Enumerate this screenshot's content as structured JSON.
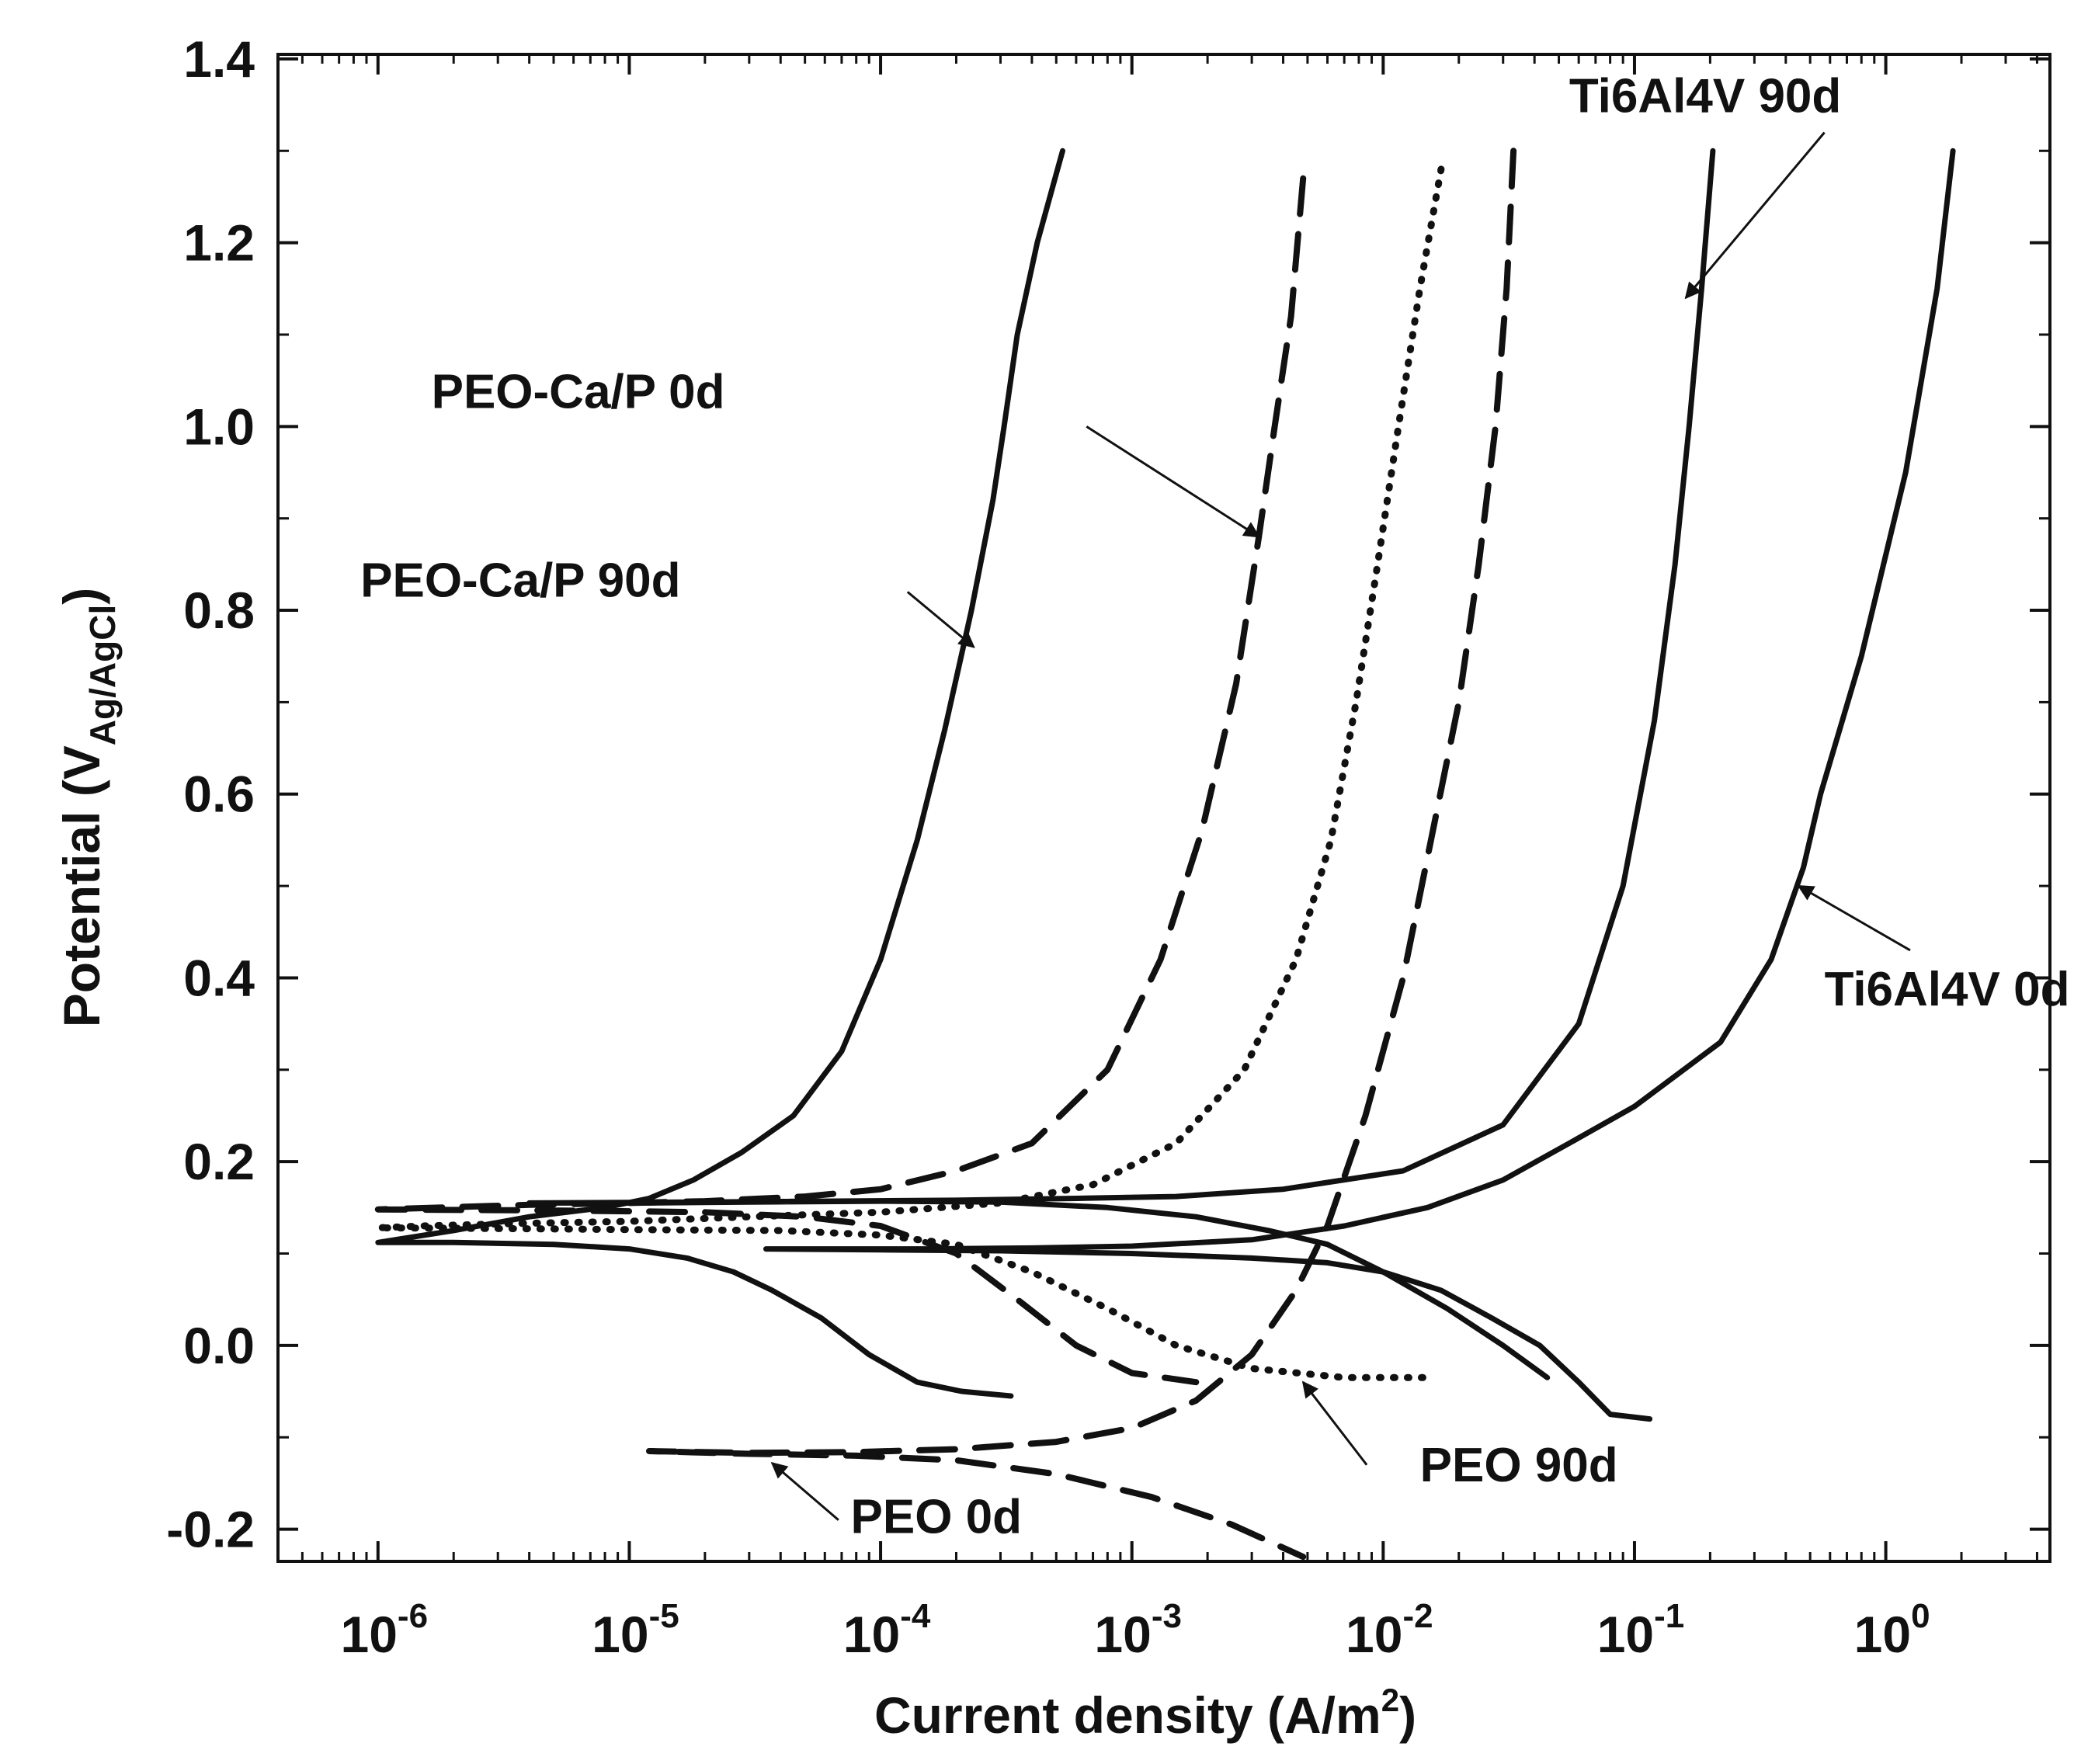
{
  "chart_data": {
    "type": "line",
    "title": "",
    "xlabel": "Current density (A/m",
    "xlabel_sup": "2",
    "xlabel_tail": ")",
    "ylabel": "Potential (V",
    "ylabel_sub": "Ag/AgCl",
    "ylabel_tail": ")",
    "x_scale": "log",
    "xlim": [
      4e-07,
      4.5
    ],
    "ylim": [
      -0.235,
      1.405
    ],
    "x_ticks": [
      {
        "value": 1e-06,
        "base": "10",
        "exp": "-6"
      },
      {
        "value": 1e-05,
        "base": "10",
        "exp": "-5"
      },
      {
        "value": 0.0001,
        "base": "10",
        "exp": "-4"
      },
      {
        "value": 0.001,
        "base": "10",
        "exp": "-3"
      },
      {
        "value": 0.01,
        "base": "10",
        "exp": "-2"
      },
      {
        "value": 0.1,
        "base": "10",
        "exp": "-1"
      },
      {
        "value": 1,
        "base": "10",
        "exp": "0"
      }
    ],
    "y_ticks": [
      {
        "value": 1.4,
        "label": "1.4"
      },
      {
        "value": 1.2,
        "label": "1.2"
      },
      {
        "value": 1.0,
        "label": "1.0"
      },
      {
        "value": 0.8,
        "label": "0.8"
      },
      {
        "value": 0.6,
        "label": "0.6"
      },
      {
        "value": 0.4,
        "label": "0.4"
      },
      {
        "value": 0.2,
        "label": "0.2"
      },
      {
        "value": 0.0,
        "label": "0.0"
      },
      {
        "value": -0.2,
        "label": "-0.2"
      }
    ],
    "series": [
      {
        "name": "PEO-Ca/P 90d",
        "style": "solid",
        "points": [
          [
            0.00033,
            -0.055
          ],
          [
            0.00021,
            -0.05
          ],
          [
            0.00014,
            -0.04
          ],
          [
            9e-05,
            -0.01
          ],
          [
            5.8e-05,
            0.03
          ],
          [
            3.7e-05,
            0.06
          ],
          [
            2.6e-05,
            0.08
          ],
          [
            1.7e-05,
            0.095
          ],
          [
            1e-05,
            0.105
          ],
          [
            5e-06,
            0.11
          ],
          [
            2e-06,
            0.112
          ],
          [
            1e-06,
            0.112
          ],
          [
            2e-06,
            0.125
          ],
          [
            4e-06,
            0.14
          ],
          [
            8e-06,
            0.15
          ],
          [
            1.2e-05,
            0.16
          ],
          [
            1.8e-05,
            0.18
          ],
          [
            2.8e-05,
            0.21
          ],
          [
            4.5e-05,
            0.25
          ],
          [
            7e-05,
            0.32
          ],
          [
            0.0001,
            0.42
          ],
          [
            0.00014,
            0.55
          ],
          [
            0.00018,
            0.67
          ],
          [
            0.00023,
            0.8
          ],
          [
            0.00028,
            0.92
          ],
          [
            0.00031,
            1.0
          ],
          [
            0.00035,
            1.1
          ],
          [
            0.00042,
            1.2
          ],
          [
            0.00053,
            1.3
          ]
        ]
      },
      {
        "name": "PEO-Ca/P 0d",
        "style": "dashed",
        "points": [
          [
            0.0048,
            1.27
          ],
          [
            0.0043,
            1.12
          ],
          [
            0.0037,
            1.0
          ],
          [
            0.0032,
            0.88
          ],
          [
            0.0026,
            0.72
          ],
          [
            0.0019,
            0.56
          ],
          [
            0.0013,
            0.42
          ],
          [
            0.0008,
            0.3
          ],
          [
            0.0004,
            0.22
          ],
          [
            0.0002,
            0.19
          ],
          [
            0.0001,
            0.17
          ],
          [
            5e-05,
            0.162
          ],
          [
            2e-05,
            0.157
          ],
          [
            1e-05,
            0.155
          ],
          [
            4e-06,
            0.153
          ],
          [
            1e-06,
            0.148
          ],
          [
            4e-06,
            0.147
          ],
          [
            1e-05,
            0.146
          ],
          [
            2e-05,
            0.145
          ],
          [
            5e-05,
            0.14
          ],
          [
            0.0001,
            0.13
          ],
          [
            0.0002,
            0.1
          ],
          [
            0.00035,
            0.05
          ],
          [
            0.0006,
            0.0
          ],
          [
            0.001,
            -0.03
          ],
          [
            0.0018,
            -0.04
          ]
        ]
      },
      {
        "name": "PEO 90d",
        "style": "dotted",
        "points": [
          [
            0.017,
            1.28
          ],
          [
            0.014,
            1.15
          ],
          [
            0.0115,
            1.0
          ],
          [
            0.0095,
            0.85
          ],
          [
            0.0078,
            0.7
          ],
          [
            0.0062,
            0.55
          ],
          [
            0.0045,
            0.42
          ],
          [
            0.0028,
            0.3
          ],
          [
            0.0015,
            0.22
          ],
          [
            0.0007,
            0.175
          ],
          [
            0.0003,
            0.155
          ],
          [
            0.0001,
            0.145
          ],
          [
            3e-05,
            0.14
          ],
          [
            1e-05,
            0.135
          ],
          [
            4e-06,
            0.133
          ],
          [
            1.5e-06,
            0.13
          ],
          [
            1e-06,
            0.128
          ],
          [
            4e-06,
            0.127
          ],
          [
            1e-05,
            0.126
          ],
          [
            4e-05,
            0.125
          ],
          [
            0.0001,
            0.12
          ],
          [
            0.0002,
            0.11
          ],
          [
            0.0004,
            0.08
          ],
          [
            0.0008,
            0.04
          ],
          [
            0.0015,
            0.0
          ],
          [
            0.003,
            -0.025
          ],
          [
            0.007,
            -0.035
          ],
          [
            0.016,
            -0.035
          ]
        ]
      },
      {
        "name": "PEO 0d",
        "style": "dashed",
        "points": [
          [
            0.033,
            1.3
          ],
          [
            0.031,
            1.15
          ],
          [
            0.028,
            1.0
          ],
          [
            0.024,
            0.85
          ],
          [
            0.02,
            0.7
          ],
          [
            0.0155,
            0.55
          ],
          [
            0.012,
            0.4
          ],
          [
            0.0085,
            0.25
          ],
          [
            0.006,
            0.13
          ],
          [
            0.0045,
            0.06
          ],
          [
            0.003,
            -0.01
          ],
          [
            0.0018,
            -0.06
          ],
          [
            0.001,
            -0.09
          ],
          [
            0.0005,
            -0.105
          ],
          [
            0.0002,
            -0.113
          ],
          [
            8e-05,
            -0.116
          ],
          [
            3e-05,
            -0.117
          ],
          [
            1.2e-05,
            -0.115
          ],
          [
            3e-05,
            -0.118
          ],
          [
            8e-05,
            -0.12
          ],
          [
            0.0002,
            -0.125
          ],
          [
            0.0005,
            -0.14
          ],
          [
            0.0012,
            -0.165
          ],
          [
            0.0025,
            -0.195
          ],
          [
            0.0048,
            -0.23
          ]
        ]
      },
      {
        "name": "Ti6Al4V 90d",
        "style": "solid",
        "points": [
          [
            0.205,
            1.3
          ],
          [
            0.185,
            1.15
          ],
          [
            0.165,
            1.0
          ],
          [
            0.145,
            0.85
          ],
          [
            0.12,
            0.68
          ],
          [
            0.09,
            0.5
          ],
          [
            0.06,
            0.35
          ],
          [
            0.03,
            0.24
          ],
          [
            0.012,
            0.19
          ],
          [
            0.004,
            0.17
          ],
          [
            0.0015,
            0.162
          ],
          [
            0.0006,
            0.16
          ],
          [
            0.0002,
            0.158
          ],
          [
            6e-05,
            0.157
          ],
          [
            2e-05,
            0.156
          ],
          [
            4e-06,
            0.155
          ],
          [
            1.2e-05,
            0.155
          ],
          [
            3e-05,
            0.156
          ],
          [
            0.0001,
            0.157
          ],
          [
            0.0003,
            0.156
          ],
          [
            0.0008,
            0.15
          ],
          [
            0.0018,
            0.14
          ],
          [
            0.0035,
            0.125
          ],
          [
            0.006,
            0.11
          ],
          [
            0.01,
            0.08
          ],
          [
            0.018,
            0.04
          ],
          [
            0.03,
            0.0
          ],
          [
            0.045,
            -0.035
          ]
        ]
      },
      {
        "name": "Ti6Al4V 0d",
        "style": "solid",
        "points": [
          [
            1.85,
            1.3
          ],
          [
            1.6,
            1.15
          ],
          [
            1.2,
            0.95
          ],
          [
            0.8,
            0.75
          ],
          [
            0.55,
            0.6
          ],
          [
            0.47,
            0.52
          ],
          [
            0.35,
            0.42
          ],
          [
            0.22,
            0.33
          ],
          [
            0.1,
            0.26
          ],
          [
            0.055,
            0.22
          ],
          [
            0.03,
            0.18
          ],
          [
            0.015,
            0.15
          ],
          [
            0.007,
            0.13
          ],
          [
            0.003,
            0.115
          ],
          [
            0.001,
            0.108
          ],
          [
            0.0004,
            0.106
          ],
          [
            0.00015,
            0.105
          ],
          [
            3.5e-05,
            0.105
          ],
          [
            0.0001,
            0.104
          ],
          [
            0.0003,
            0.103
          ],
          [
            0.001,
            0.1
          ],
          [
            0.003,
            0.095
          ],
          [
            0.006,
            0.09
          ],
          [
            0.01,
            0.08
          ],
          [
            0.017,
            0.06
          ],
          [
            0.027,
            0.03
          ],
          [
            0.042,
            0.0
          ],
          [
            0.06,
            -0.04
          ],
          [
            0.08,
            -0.075
          ],
          [
            0.115,
            -0.08
          ]
        ]
      }
    ],
    "annotations": [
      {
        "label": "PEO-Ca/P 0d",
        "text_at": [
          2.4e-05,
          1.02
        ],
        "anchor": "end",
        "arrow_from": [
          0.00066,
          1.0
        ],
        "arrow_to": [
          0.0032,
          0.88
        ]
      },
      {
        "label": "PEO-Ca/P 90d",
        "text_at": [
          1.6e-05,
          0.815
        ],
        "anchor": "end",
        "arrow_from": [
          0.000128,
          0.82
        ],
        "arrow_to": [
          0.000235,
          0.76
        ]
      },
      {
        "label": "Ti6Al4V 90d",
        "text_at": [
          0.055,
          1.342
        ],
        "anchor": "start",
        "arrow_from": [
          0.57,
          1.32
        ],
        "arrow_to": [
          0.16,
          1.14
        ]
      },
      {
        "label": "Ti6Al4V 0d",
        "text_at": [
          0.57,
          0.37
        ],
        "anchor": "start",
        "arrow_from": [
          1.25,
          0.43
        ],
        "arrow_to": [
          0.45,
          0.5
        ]
      },
      {
        "label": "PEO 90d",
        "text_at": [
          0.014,
          -0.148
        ],
        "anchor": "start",
        "arrow_from": [
          0.0086,
          -0.13
        ],
        "arrow_to": [
          0.0048,
          -0.04
        ]
      },
      {
        "label": "PEO 0d",
        "text_at": [
          7.6e-05,
          -0.204
        ],
        "anchor": "start",
        "arrow_from": [
          6.8e-05,
          -0.19
        ],
        "arrow_to": [
          3.7e-05,
          -0.128
        ]
      }
    ]
  }
}
